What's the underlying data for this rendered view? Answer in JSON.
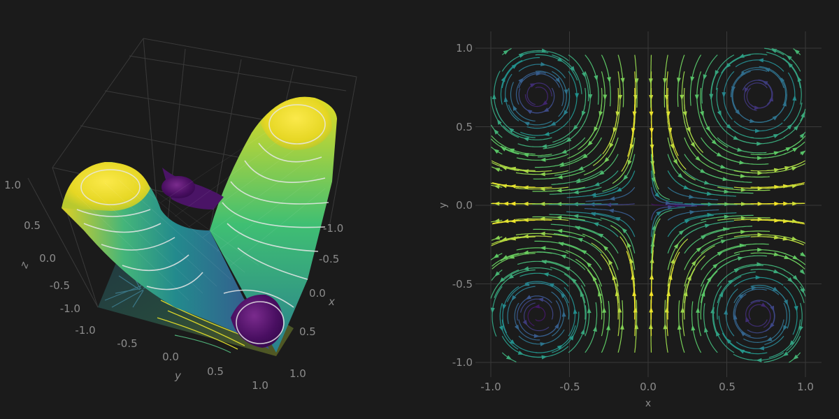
{
  "chart_data": [
    {
      "type": "surface",
      "function": "z = sin(2x)·sin(2y) style saddle surface with contour lines and projected streamlines on the floor",
      "xlabel": "x",
      "ylabel": "y",
      "zlabel": "z",
      "xlim": [
        -1.0,
        1.0
      ],
      "ylim": [
        -1.0,
        1.0
      ],
      "zlim": [
        -1.0,
        1.0
      ],
      "x_ticks": [
        "-1.0",
        "-0.5",
        "0.0",
        "0.5",
        "1.0"
      ],
      "y_ticks": [
        "-1.0",
        "-0.5",
        "0.0",
        "0.5",
        "1.0"
      ],
      "z_ticks": [
        "-1.0",
        "-0.5",
        "0.0",
        "0.5",
        "1.0"
      ],
      "colormap": "viridis",
      "grid": true
    },
    {
      "type": "streamplot",
      "xlabel": "x",
      "ylabel": "y",
      "xlim": [
        -1.0,
        1.0
      ],
      "ylim": [
        -1.0,
        1.0
      ],
      "x_ticks": [
        "-1.0",
        "-0.5",
        "0.0",
        "0.5",
        "1.0"
      ],
      "y_ticks": [
        "1.0",
        "0.5",
        "0.0",
        "-0.5",
        "-1.0"
      ],
      "colormap": "viridis",
      "grid": true
    }
  ],
  "colors": {
    "background": "#1b1b1b",
    "tick_text": "#8c8c8c",
    "grid": "#3a3a3a"
  }
}
